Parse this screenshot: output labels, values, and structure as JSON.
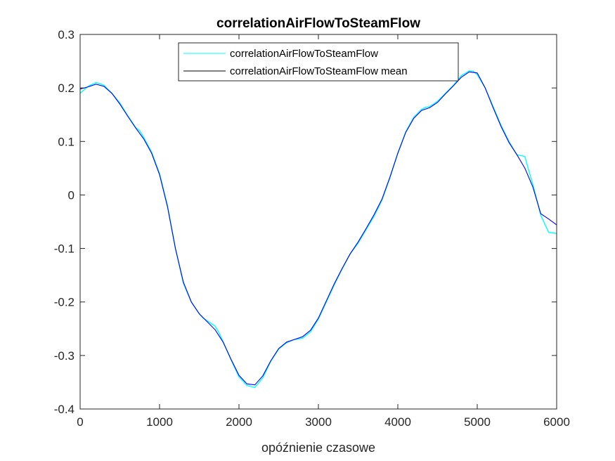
{
  "chart_data": {
    "type": "line",
    "title": "correlationAirFlowToSteamFlow",
    "xlabel": "opóźnienie czasowe",
    "ylabel": "",
    "xlim": [
      0,
      6000
    ],
    "ylim": [
      -0.4,
      0.3
    ],
    "xticks": [
      "0",
      "1000",
      "2000",
      "3000",
      "4000",
      "5000",
      "6000"
    ],
    "yticks": [
      "0.3",
      "0.2",
      "0.1",
      "0",
      "-0.1",
      "-0.2",
      "-0.3",
      "-0.4"
    ],
    "grid": false,
    "legend_position": "top-center",
    "series": [
      {
        "name": "correlationAirFlowToSteamFlow",
        "color": "#00ffff",
        "x": [
          0,
          100,
          200,
          250,
          300,
          400,
          500,
          600,
          700,
          750,
          800,
          900,
          1000,
          1100,
          1200,
          1300,
          1400,
          1500,
          1550,
          1600,
          1700,
          1750,
          1800,
          1900,
          2000,
          2100,
          2200,
          2300,
          2400,
          2500,
          2600,
          2700,
          2800,
          2900,
          3000,
          3100,
          3200,
          3300,
          3400,
          3500,
          3600,
          3700,
          3800,
          3900,
          4000,
          4100,
          4200,
          4300,
          4350,
          4400,
          4500,
          4600,
          4700,
          4800,
          4900,
          4950,
          5000,
          5100,
          5200,
          5300,
          5400,
          5500,
          5600,
          5650,
          5700,
          5800,
          5900,
          6000
        ],
        "y": [
          0.19,
          0.203,
          0.21,
          0.208,
          0.205,
          0.19,
          0.172,
          0.148,
          0.126,
          0.12,
          0.108,
          0.08,
          0.04,
          -0.02,
          -0.1,
          -0.165,
          -0.2,
          -0.222,
          -0.23,
          -0.235,
          -0.245,
          -0.258,
          -0.274,
          -0.308,
          -0.34,
          -0.356,
          -0.36,
          -0.342,
          -0.311,
          -0.288,
          -0.276,
          -0.27,
          -0.268,
          -0.256,
          -0.232,
          -0.2,
          -0.168,
          -0.138,
          -0.11,
          -0.09,
          -0.065,
          -0.04,
          -0.01,
          0.032,
          0.078,
          0.118,
          0.145,
          0.16,
          0.164,
          0.165,
          0.175,
          0.19,
          0.205,
          0.223,
          0.232,
          0.231,
          0.225,
          0.2,
          0.165,
          0.13,
          0.1,
          0.075,
          0.072,
          0.045,
          0.02,
          -0.038,
          -0.07,
          -0.072
        ]
      },
      {
        "name": "correlationAirFlowToSteamFlow mean",
        "color": "#0000ff",
        "x": [
          0,
          100,
          200,
          300,
          400,
          500,
          600,
          700,
          800,
          900,
          1000,
          1100,
          1200,
          1300,
          1400,
          1500,
          1600,
          1700,
          1800,
          1900,
          2000,
          2100,
          2200,
          2300,
          2400,
          2500,
          2600,
          2700,
          2800,
          2900,
          3000,
          3100,
          3200,
          3300,
          3400,
          3500,
          3600,
          3700,
          3800,
          3900,
          4000,
          4100,
          4200,
          4300,
          4400,
          4500,
          4600,
          4700,
          4800,
          4900,
          5000,
          5100,
          5200,
          5300,
          5400,
          5500,
          5600,
          5700,
          5800,
          5900,
          6000
        ],
        "y": [
          0.198,
          0.202,
          0.207,
          0.203,
          0.19,
          0.17,
          0.147,
          0.125,
          0.105,
          0.078,
          0.038,
          -0.022,
          -0.1,
          -0.163,
          -0.2,
          -0.222,
          -0.237,
          -0.252,
          -0.275,
          -0.307,
          -0.337,
          -0.353,
          -0.355,
          -0.338,
          -0.31,
          -0.287,
          -0.275,
          -0.27,
          -0.265,
          -0.253,
          -0.23,
          -0.198,
          -0.166,
          -0.137,
          -0.11,
          -0.088,
          -0.063,
          -0.037,
          -0.008,
          0.033,
          0.078,
          0.117,
          0.143,
          0.158,
          0.163,
          0.173,
          0.189,
          0.204,
          0.22,
          0.23,
          0.228,
          0.2,
          0.163,
          0.128,
          0.098,
          0.075,
          0.05,
          0.015,
          -0.035,
          -0.045,
          -0.056
        ]
      }
    ]
  }
}
